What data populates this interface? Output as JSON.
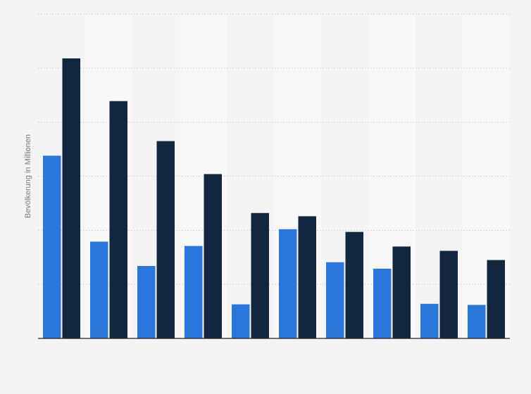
{
  "chart_data": {
    "type": "bar",
    "title": "",
    "xlabel": "",
    "ylabel": "Bevölkerung in Millionen",
    "ylim": [
      0,
      600
    ],
    "grid": true,
    "legend": "none",
    "categories": [
      "",
      "",
      "",
      "",
      "",
      "",
      "",
      "",
      "",
      ""
    ],
    "series": [
      {
        "color": "#2a76dd",
        "values": [
          338,
          179,
          134,
          171,
          63,
          202,
          141,
          129,
          64,
          62
        ]
      },
      {
        "color": "#13263f",
        "values": [
          518,
          439,
          365,
          304,
          232,
          226,
          197,
          170,
          162,
          145
        ]
      }
    ]
  }
}
